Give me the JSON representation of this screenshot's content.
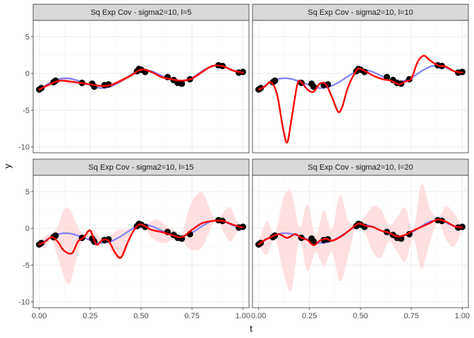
{
  "chart_data": {
    "type": "line",
    "xlabel": "t",
    "ylabel": "y",
    "xlim": [
      -0.03,
      1.03
    ],
    "ylim": [
      -10.8,
      7.2
    ],
    "x_ticks": [
      0,
      0.25,
      0.5,
      0.75,
      1
    ],
    "x_tick_labels": [
      "0.00",
      "0.25",
      "0.50",
      "0.75",
      "1.00"
    ],
    "y_ticks": [
      -10,
      -5,
      0,
      5
    ],
    "y_tick_labels": [
      "-10",
      "-5",
      "0",
      "5"
    ],
    "grid": true,
    "colors": {
      "true_function": "#8080ff",
      "fit": "#ff0000",
      "band": "#ffd6d6",
      "points": "#000000",
      "strip_bg": "#d9d9d9",
      "grid_major": "#ebebeb",
      "grid_minor": "#f5f5f5"
    },
    "points": {
      "t": [
        0.0,
        0.01,
        0.07,
        0.08,
        0.21,
        0.26,
        0.27,
        0.32,
        0.34,
        0.48,
        0.49,
        0.5,
        0.52,
        0.63,
        0.66,
        0.68,
        0.7,
        0.74,
        0.88,
        0.9,
        0.98,
        1.0
      ],
      "y": [
        -2.2,
        -2.0,
        -1.2,
        -1.0,
        -1.3,
        -1.4,
        -1.8,
        -1.6,
        -1.5,
        0.3,
        0.6,
        0.5,
        0.2,
        -0.5,
        -0.9,
        -1.3,
        -1.4,
        -0.8,
        1.1,
        1.0,
        0.1,
        0.2
      ]
    },
    "true_function": {
      "t": [
        0,
        0.05,
        0.1,
        0.15,
        0.2,
        0.25,
        0.3,
        0.35,
        0.4,
        0.45,
        0.5,
        0.55,
        0.6,
        0.65,
        0.7,
        0.75,
        0.8,
        0.85,
        0.9,
        0.95,
        1.0
      ],
      "y": [
        -2.3,
        -1.3,
        -0.75,
        -0.7,
        -1.1,
        -1.6,
        -2.0,
        -1.8,
        -1.1,
        -0.2,
        0.5,
        0.3,
        -0.3,
        -0.9,
        -1.1,
        -0.6,
        0.3,
        1.0,
        1.0,
        0.4,
        0.1
      ]
    },
    "panels": [
      {
        "title": "Sq Exp Cov - sigma2=10, l=5",
        "fit": {
          "t": [
            0,
            0.05,
            0.1,
            0.15,
            0.2,
            0.25,
            0.3,
            0.35,
            0.4,
            0.45,
            0.5,
            0.55,
            0.6,
            0.65,
            0.7,
            0.75,
            0.8,
            0.85,
            0.9,
            0.95,
            1.0
          ],
          "y": [
            -2.2,
            -1.5,
            -1.0,
            -1.1,
            -1.3,
            -1.5,
            -1.7,
            -1.6,
            -1.0,
            -0.3,
            0.5,
            0.2,
            -0.5,
            -0.8,
            -1.0,
            -0.7,
            0.2,
            1.0,
            1.0,
            0.4,
            0.1
          ]
        },
        "band": {
          "t": [
            0,
            0.05,
            0.1,
            0.15,
            0.2,
            0.25,
            0.3,
            0.35,
            0.4,
            0.45,
            0.5,
            0.55,
            0.6,
            0.65,
            0.7,
            0.75,
            0.8,
            0.85,
            0.9,
            0.95,
            1.0
          ],
          "lower": [
            -2.4,
            -1.8,
            -1.3,
            -1.5,
            -1.5,
            -1.7,
            -1.9,
            -1.8,
            -1.3,
            -0.6,
            0.3,
            0.0,
            -0.8,
            -1.0,
            -1.2,
            -0.9,
            -0.1,
            0.8,
            0.8,
            0.2,
            -0.1
          ],
          "upper": [
            -2.0,
            -1.2,
            -0.7,
            -0.7,
            -1.1,
            -1.3,
            -1.5,
            -1.4,
            -0.7,
            0.0,
            0.7,
            0.4,
            -0.2,
            -0.6,
            -0.8,
            -0.5,
            0.5,
            1.2,
            1.2,
            0.6,
            0.3
          ]
        }
      },
      {
        "title": "Sq Exp Cov - sigma2=10, l=10",
        "fit": {
          "t": [
            0,
            0.03,
            0.06,
            0.09,
            0.12,
            0.14,
            0.16,
            0.19,
            0.21,
            0.24,
            0.27,
            0.3,
            0.33,
            0.36,
            0.39,
            0.41,
            0.44,
            0.48,
            0.5,
            0.53,
            0.57,
            0.61,
            0.65,
            0.69,
            0.72,
            0.75,
            0.78,
            0.81,
            0.84,
            0.88,
            0.92,
            0.96,
            1.0
          ],
          "y": [
            -2.2,
            -1.8,
            -1.2,
            -2.8,
            -7.5,
            -9.4,
            -6.5,
            -1.5,
            -1.2,
            -2.2,
            -2.5,
            -1.4,
            -1.5,
            -3.2,
            -5.2,
            -4.6,
            -1.8,
            0.4,
            0.6,
            0.2,
            -0.4,
            -0.8,
            -1.0,
            -1.5,
            -1.1,
            -0.7,
            1.5,
            2.4,
            1.8,
            1.1,
            0.9,
            0.3,
            0.1
          ]
        }
      },
      {
        "title": "Sq Exp Cov - sigma2=10, l=15",
        "fit": {
          "t": [
            0,
            0.03,
            0.06,
            0.09,
            0.12,
            0.16,
            0.19,
            0.22,
            0.25,
            0.28,
            0.31,
            0.34,
            0.37,
            0.4,
            0.43,
            0.46,
            0.49,
            0.52,
            0.55,
            0.6,
            0.65,
            0.7,
            0.75,
            0.8,
            0.85,
            0.9,
            0.95,
            1.0
          ],
          "y": [
            -2.2,
            -1.8,
            -1.2,
            -1.8,
            -3.0,
            -3.4,
            -1.8,
            -1.2,
            -0.3,
            -2.2,
            -1.6,
            -1.7,
            -3.2,
            -4.0,
            -2.2,
            -0.5,
            0.5,
            0.3,
            -0.2,
            -0.5,
            -0.9,
            -1.2,
            -0.2,
            0.7,
            1.0,
            1.0,
            0.5,
            0.1
          ]
        },
        "band": {
          "t": [
            0,
            0.03,
            0.06,
            0.09,
            0.12,
            0.15,
            0.18,
            0.21,
            0.24,
            0.27,
            0.3,
            0.33,
            0.36,
            0.39,
            0.42,
            0.45,
            0.48,
            0.5,
            0.52,
            0.55,
            0.58,
            0.62,
            0.66,
            0.7,
            0.73,
            0.76,
            0.8,
            0.83,
            0.86,
            0.88,
            0.91,
            0.94,
            0.97,
            1.0
          ],
          "lower": [
            -2.4,
            -2.6,
            -1.6,
            -3.8,
            -6.5,
            -7.5,
            -4.5,
            -1.6,
            -1.5,
            -2.4,
            -2.0,
            -1.9,
            -3.4,
            -4.3,
            -3.5,
            -1.2,
            0.2,
            0.3,
            0.0,
            -1.2,
            -1.8,
            -2.0,
            -1.5,
            -1.6,
            -2.6,
            -3.0,
            -2.6,
            -0.8,
            0.9,
            0.8,
            -0.8,
            -1.8,
            -0.6,
            0.0
          ],
          "upper": [
            -2.0,
            -1.0,
            -0.7,
            0.3,
            2.5,
            2.6,
            0.8,
            -0.8,
            -0.2,
            -0.3,
            -1.2,
            -1.3,
            -0.8,
            -0.1,
            -0.2,
            0.1,
            0.8,
            0.9,
            0.6,
            0.9,
            1.2,
            0.4,
            -0.2,
            -0.8,
            2.2,
            4.1,
            4.9,
            3.2,
            1.3,
            1.2,
            2.4,
            2.8,
            1.0,
            0.3
          ]
        }
      },
      {
        "title": "Sq Exp Cov - sigma2=10, l=20",
        "fit": {
          "t": [
            0,
            0.03,
            0.06,
            0.1,
            0.14,
            0.18,
            0.21,
            0.24,
            0.27,
            0.3,
            0.33,
            0.36,
            0.4,
            0.44,
            0.48,
            0.5,
            0.53,
            0.56,
            0.6,
            0.64,
            0.68,
            0.72,
            0.76,
            0.8,
            0.84,
            0.88,
            0.92,
            0.96,
            1.0
          ],
          "y": [
            -2.2,
            -1.6,
            -1.2,
            -0.8,
            -1.3,
            -0.8,
            -1.3,
            -1.6,
            -2.3,
            -1.7,
            -1.4,
            -1.7,
            -1.2,
            -0.4,
            0.5,
            0.6,
            0.3,
            0.2,
            -0.3,
            -0.6,
            -1.1,
            -0.9,
            -0.3,
            0.2,
            0.7,
            1.2,
            0.9,
            0.3,
            0.1
          ]
        },
        "band": {
          "t": [
            0,
            0.04,
            0.08,
            0.12,
            0.16,
            0.2,
            0.24,
            0.28,
            0.32,
            0.36,
            0.4,
            0.44,
            0.48,
            0.52,
            0.56,
            0.6,
            0.64,
            0.68,
            0.72,
            0.76,
            0.8,
            0.84,
            0.88,
            0.92,
            0.96,
            1.0
          ],
          "lower": [
            -2.4,
            -3.6,
            -1.4,
            -5.8,
            -8.5,
            -1.8,
            -5.8,
            -3.2,
            -5.2,
            -3.2,
            -7.2,
            -3.8,
            0.2,
            -0.5,
            -3.2,
            -4.0,
            -1.8,
            -3.2,
            -4.5,
            -1.4,
            -5.5,
            -2.0,
            0.8,
            -1.5,
            -2.5,
            -0.1
          ],
          "upper": [
            -2.0,
            1.0,
            -0.8,
            4.0,
            5.0,
            0.2,
            3.2,
            -1.0,
            2.4,
            -0.2,
            4.5,
            1.0,
            0.8,
            1.5,
            3.0,
            2.6,
            0.4,
            1.5,
            2.8,
            -0.2,
            6.0,
            2.8,
            1.4,
            3.0,
            2.0,
            0.3
          ]
        }
      }
    ]
  }
}
